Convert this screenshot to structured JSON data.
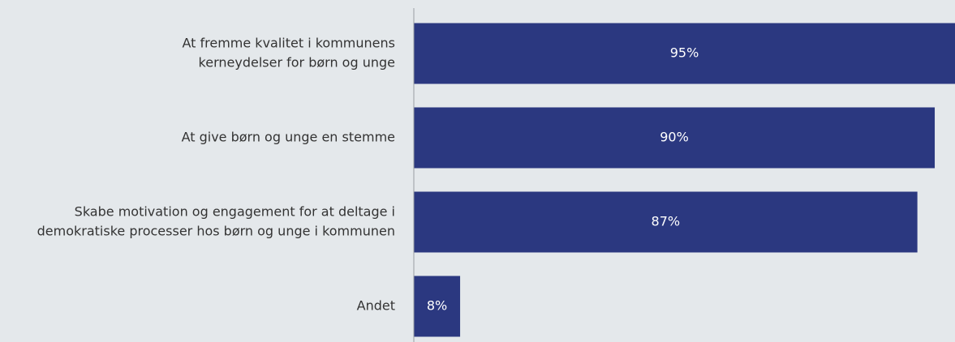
{
  "chart_data": {
    "type": "hbar",
    "categories": [
      [
        "At fremme kvalitet i kommunens",
        "kerneydelser for børn og unge"
      ],
      [
        "At give børn og unge en stemme"
      ],
      [
        "Skabe motivation og engagement for at deltage i",
        "demokratiske processer hos børn og unge i kommunen"
      ],
      [
        "Andet"
      ]
    ],
    "values": [
      95,
      90,
      87,
      8
    ],
    "value_labels": [
      "95%",
      "90%",
      "87%",
      "8%"
    ],
    "color": "#2b3880",
    "xlim": [
      0,
      93.5
    ]
  }
}
